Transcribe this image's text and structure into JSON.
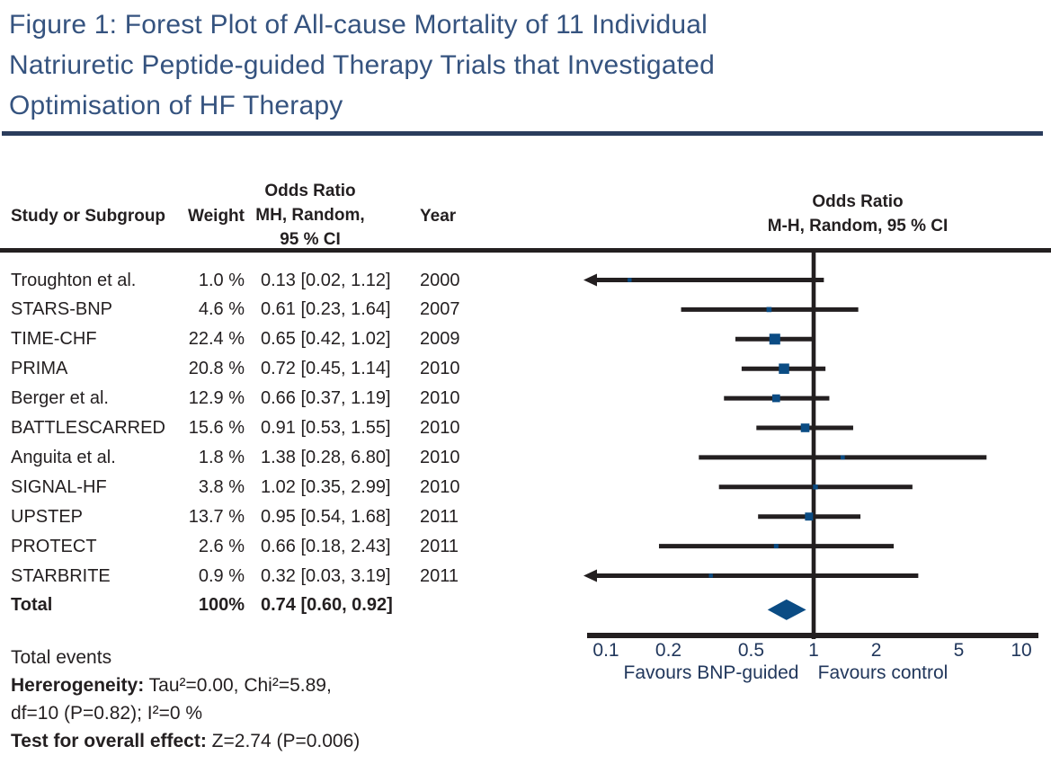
{
  "title": "Figure 1: Forest Plot of All-cause Mortality of 11 Individual\nNatriuretic Peptide-guided Therapy Trials that Investigated\nOptimisation of HF Therapy",
  "colors": {
    "title_navy": "#35537F",
    "rule_navy": "#2A3C5C",
    "ink": "#231F20",
    "marker_blue": "#0B4C84",
    "axis_label_navy": "#21375C"
  },
  "table_header": {
    "study": "Study or Subgroup",
    "weight": "Weight",
    "or_ci": "Odds Ratio\nMH, Random,\n95 % CI",
    "year": "Year"
  },
  "plot_header": "Odds Ratio\nM-H, Random, 95 % CI",
  "chart_data": {
    "type": "forest",
    "effect_measure": "Odds Ratio (M-H, Random, 95 % CI)",
    "x_axis": {
      "scale": "log10",
      "range": [
        0.1,
        10
      ],
      "ticks": [
        0.1,
        0.2,
        0.5,
        1,
        2,
        5,
        10
      ],
      "reference_line": 1,
      "left_label": "Favours BNP-guided",
      "right_label": "Favours control"
    },
    "studies": [
      {
        "study": "Troughton et al.",
        "weight_pct": 1.0,
        "weight": "1.0 %",
        "or": 0.13,
        "ci_low": 0.02,
        "ci_high": 1.12,
        "ci_label": "0.13 [0.02, 1.12]",
        "year": "2000"
      },
      {
        "study": "STARS-BNP",
        "weight_pct": 4.6,
        "weight": "4.6 %",
        "or": 0.61,
        "ci_low": 0.23,
        "ci_high": 1.64,
        "ci_label": "0.61 [0.23, 1.64]",
        "year": "2007"
      },
      {
        "study": "TIME-CHF",
        "weight_pct": 22.4,
        "weight": "22.4 %",
        "or": 0.65,
        "ci_low": 0.42,
        "ci_high": 1.02,
        "ci_label": "0.65 [0.42, 1.02]",
        "year": "2009"
      },
      {
        "study": "PRIMA",
        "weight_pct": 20.8,
        "weight": "20.8 %",
        "or": 0.72,
        "ci_low": 0.45,
        "ci_high": 1.14,
        "ci_label": "0.72 [0.45, 1.14]",
        "year": "2010"
      },
      {
        "study": "Berger et al.",
        "weight_pct": 12.9,
        "weight": "12.9 %",
        "or": 0.66,
        "ci_low": 0.37,
        "ci_high": 1.19,
        "ci_label": "0.66 [0.37, 1.19]",
        "year": "2010"
      },
      {
        "study": "BATTLESCARRED",
        "weight_pct": 15.6,
        "weight": "15.6 %",
        "or": 0.91,
        "ci_low": 0.53,
        "ci_high": 1.55,
        "ci_label": "0.91 [0.53, 1.55]",
        "year": "2010"
      },
      {
        "study": "Anguita et al.",
        "weight_pct": 1.8,
        "weight": "1.8 %",
        "or": 1.38,
        "ci_low": 0.28,
        "ci_high": 6.8,
        "ci_label": "1.38 [0.28, 6.80]",
        "year": "2010"
      },
      {
        "study": "SIGNAL-HF",
        "weight_pct": 3.8,
        "weight": "3.8 %",
        "or": 1.02,
        "ci_low": 0.35,
        "ci_high": 2.99,
        "ci_label": "1.02 [0.35, 2.99]",
        "year": "2010"
      },
      {
        "study": "UPSTEP",
        "weight_pct": 13.7,
        "weight": "13.7 %",
        "or": 0.95,
        "ci_low": 0.54,
        "ci_high": 1.68,
        "ci_label": "0.95 [0.54, 1.68]",
        "year": "2011"
      },
      {
        "study": "PROTECT",
        "weight_pct": 2.6,
        "weight": "2.6 %",
        "or": 0.66,
        "ci_low": 0.18,
        "ci_high": 2.43,
        "ci_label": "0.66 [0.18, 2.43]",
        "year": "2011"
      },
      {
        "study": "STARBRITE",
        "weight_pct": 0.9,
        "weight": "0.9 %",
        "or": 0.32,
        "ci_low": 0.03,
        "ci_high": 3.19,
        "ci_label": "0.32 [0.03, 3.19]",
        "year": "2011"
      }
    ],
    "total": {
      "study": "Total",
      "weight": "100%",
      "or": 0.74,
      "ci_low": 0.6,
      "ci_high": 0.92,
      "ci_label": "0.74 [0.60, 0.92]",
      "year": ""
    }
  },
  "footer": {
    "lines": [
      {
        "bold": "",
        "text": "Total events"
      },
      {
        "bold": "Hererogeneity:",
        "text": " Tau²=0.00, Chi²=5.89,"
      },
      {
        "bold": "",
        "text": "df=10 (P=0.82); I²=0 %"
      },
      {
        "bold": "Test for overall effect:",
        "text": " Z=2.74 (P=0.006)"
      }
    ]
  }
}
